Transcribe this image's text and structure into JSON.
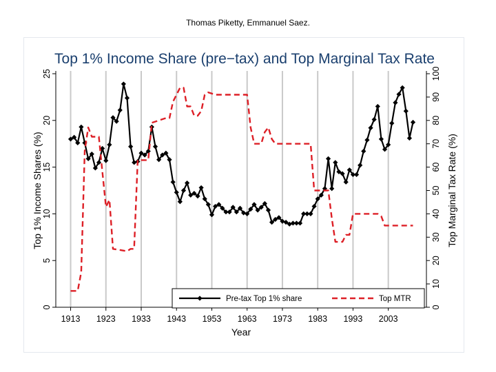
{
  "header": {
    "author": "Thomas Piketty, Emmanuel Saez."
  },
  "chart_data": {
    "type": "line",
    "title": "Top 1% Income Share (pre−tax) and Top Marginal Tax Rate",
    "xlabel": "Year",
    "ylabel_left": "Top 1% Income Shares (%)",
    "ylabel_right": "Top Marginal Tax Rate (%)",
    "xlim": [
      1913,
      2010
    ],
    "ylim_left": [
      0,
      25
    ],
    "ylim_right": [
      0,
      100
    ],
    "x_ticks": [
      1913,
      1923,
      1933,
      1943,
      1953,
      1963,
      1973,
      1983,
      1993,
      2003
    ],
    "y_ticks_left": [
      0,
      5,
      10,
      15,
      20,
      25
    ],
    "y_ticks_right": [
      0,
      10,
      20,
      30,
      40,
      50,
      60,
      70,
      80,
      90,
      100
    ],
    "grid": "vertical lines at x ticks",
    "legend_placement": "bottom-right",
    "series": [
      {
        "name": "Pre-tax Top 1% share",
        "axis": "left",
        "color": "#000000",
        "style": "solid-with-diamond-markers",
        "points": [
          [
            1913,
            18.0
          ],
          [
            1914,
            18.2
          ],
          [
            1915,
            17.6
          ],
          [
            1916,
            19.3
          ],
          [
            1917,
            17.6
          ],
          [
            1918,
            15.9
          ],
          [
            1919,
            16.4
          ],
          [
            1920,
            14.9
          ],
          [
            1921,
            15.5
          ],
          [
            1922,
            17.0
          ],
          [
            1923,
            15.7
          ],
          [
            1924,
            17.4
          ],
          [
            1925,
            20.3
          ],
          [
            1926,
            19.9
          ],
          [
            1927,
            21.1
          ],
          [
            1928,
            23.9
          ],
          [
            1929,
            22.4
          ],
          [
            1930,
            17.2
          ],
          [
            1931,
            15.5
          ],
          [
            1932,
            15.6
          ],
          [
            1933,
            16.5
          ],
          [
            1934,
            16.3
          ],
          [
            1935,
            16.7
          ],
          [
            1936,
            19.3
          ],
          [
            1937,
            17.2
          ],
          [
            1938,
            15.8
          ],
          [
            1939,
            16.3
          ],
          [
            1940,
            16.5
          ],
          [
            1941,
            15.8
          ],
          [
            1942,
            13.4
          ],
          [
            1943,
            12.3
          ],
          [
            1944,
            11.3
          ],
          [
            1945,
            12.5
          ],
          [
            1946,
            13.3
          ],
          [
            1947,
            12.0
          ],
          [
            1948,
            12.2
          ],
          [
            1949,
            11.9
          ],
          [
            1950,
            12.8
          ],
          [
            1951,
            11.6
          ],
          [
            1952,
            11.0
          ],
          [
            1953,
            9.9
          ],
          [
            1954,
            10.8
          ],
          [
            1955,
            11.0
          ],
          [
            1956,
            10.6
          ],
          [
            1957,
            10.2
          ],
          [
            1958,
            10.2
          ],
          [
            1959,
            10.7
          ],
          [
            1960,
            10.2
          ],
          [
            1961,
            10.6
          ],
          [
            1962,
            10.1
          ],
          [
            1963,
            10.0
          ],
          [
            1964,
            10.5
          ],
          [
            1965,
            11.0
          ],
          [
            1966,
            10.4
          ],
          [
            1967,
            10.7
          ],
          [
            1968,
            11.1
          ],
          [
            1969,
            10.4
          ],
          [
            1970,
            9.1
          ],
          [
            1971,
            9.4
          ],
          [
            1972,
            9.6
          ],
          [
            1973,
            9.2
          ],
          [
            1974,
            9.1
          ],
          [
            1975,
            8.9
          ],
          [
            1976,
            9.0
          ],
          [
            1977,
            9.0
          ],
          [
            1978,
            9.0
          ],
          [
            1979,
            10.0
          ],
          [
            1980,
            10.0
          ],
          [
            1981,
            10.0
          ],
          [
            1982,
            10.8
          ],
          [
            1983,
            11.6
          ],
          [
            1984,
            12.0
          ],
          [
            1985,
            12.7
          ],
          [
            1986,
            15.9
          ],
          [
            1987,
            12.7
          ],
          [
            1988,
            15.5
          ],
          [
            1989,
            14.5
          ],
          [
            1990,
            14.3
          ],
          [
            1991,
            13.4
          ],
          [
            1992,
            14.7
          ],
          [
            1993,
            14.2
          ],
          [
            1994,
            14.2
          ],
          [
            1995,
            15.2
          ],
          [
            1996,
            16.7
          ],
          [
            1997,
            17.9
          ],
          [
            1998,
            19.2
          ],
          [
            1999,
            20.1
          ],
          [
            2000,
            21.5
          ],
          [
            2001,
            18.0
          ],
          [
            2002,
            16.9
          ],
          [
            2003,
            17.4
          ],
          [
            2004,
            19.7
          ],
          [
            2005,
            21.9
          ],
          [
            2006,
            22.8
          ],
          [
            2007,
            23.5
          ],
          [
            2008,
            21.0
          ],
          [
            2009,
            18.1
          ],
          [
            2010,
            19.8
          ]
        ]
      },
      {
        "name": "Top MTR",
        "axis": "right",
        "color": "#dd1f26",
        "style": "dashed",
        "points": [
          [
            1913,
            7
          ],
          [
            1915,
            7
          ],
          [
            1916,
            15
          ],
          [
            1917,
            67
          ],
          [
            1918,
            77
          ],
          [
            1919,
            73
          ],
          [
            1921,
            73
          ],
          [
            1922,
            58
          ],
          [
            1923,
            43
          ],
          [
            1924,
            46
          ],
          [
            1925,
            25
          ],
          [
            1929,
            24
          ],
          [
            1930,
            25
          ],
          [
            1931,
            25
          ],
          [
            1932,
            63
          ],
          [
            1935,
            63
          ],
          [
            1936,
            79
          ],
          [
            1940,
            81
          ],
          [
            1941,
            81
          ],
          [
            1942,
            88
          ],
          [
            1944,
            94
          ],
          [
            1945,
            94
          ],
          [
            1946,
            86
          ],
          [
            1947,
            86
          ],
          [
            1948,
            82
          ],
          [
            1949,
            82
          ],
          [
            1950,
            84
          ],
          [
            1951,
            91
          ],
          [
            1952,
            92
          ],
          [
            1954,
            91
          ],
          [
            1963,
            91
          ],
          [
            1964,
            77
          ],
          [
            1965,
            70
          ],
          [
            1967,
            70
          ],
          [
            1968,
            75
          ],
          [
            1969,
            77
          ],
          [
            1970,
            72
          ],
          [
            1971,
            70
          ],
          [
            1981,
            70
          ],
          [
            1982,
            50
          ],
          [
            1986,
            50
          ],
          [
            1987,
            38
          ],
          [
            1988,
            28
          ],
          [
            1990,
            28
          ],
          [
            1991,
            31
          ],
          [
            1992,
            31
          ],
          [
            1993,
            40
          ],
          [
            2000,
            40
          ],
          [
            2001,
            39
          ],
          [
            2002,
            35
          ],
          [
            2010,
            35
          ]
        ]
      }
    ]
  }
}
